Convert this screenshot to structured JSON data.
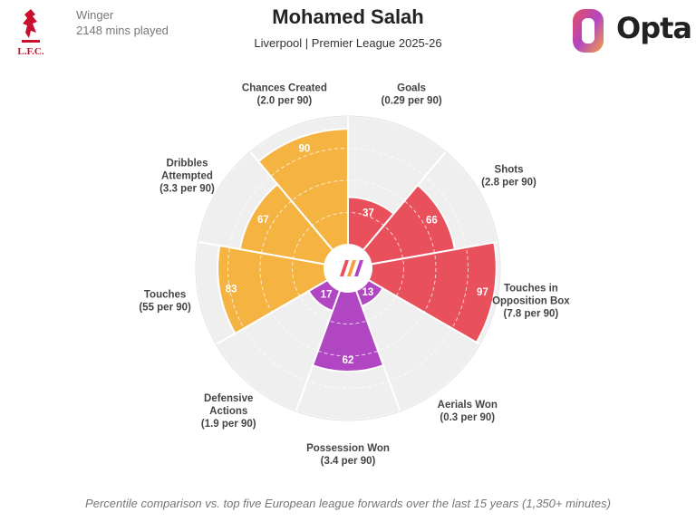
{
  "player": {
    "position": "Winger",
    "minutes": "2148 mins played",
    "name": "Mohamed Salah",
    "team_competition": "Liverpool | Premier League 2025-26"
  },
  "brand": {
    "club_text": "L.F.C.",
    "provider": "Opta"
  },
  "footnote": "Percentile comparison vs. top five European league forwards over the last 15 years (1,350+ minutes)",
  "colors": {
    "attacking": "#e8505b",
    "possession": "#f5b342",
    "defending": "#b146c2",
    "background_sector": "#efefef",
    "club": "#c8102e"
  },
  "chart_data": {
    "type": "polar-bar",
    "value_range": [
      0,
      100
    ],
    "metrics": [
      {
        "label": [
          "Goals"
        ],
        "per90": "(0.29 per 90)",
        "percentile": 37,
        "group": "attacking"
      },
      {
        "label": [
          "Shots"
        ],
        "per90": "(2.8 per 90)",
        "percentile": 66,
        "group": "attacking"
      },
      {
        "label": [
          "Touches in",
          "Opposition Box"
        ],
        "per90": "(7.8 per 90)",
        "percentile": 97,
        "group": "attacking"
      },
      {
        "label": [
          "Aerials Won"
        ],
        "per90": "(0.3 per 90)",
        "percentile": 13,
        "group": "defending"
      },
      {
        "label": [
          "Possession Won"
        ],
        "per90": "(3.4 per 90)",
        "percentile": 62,
        "group": "defending"
      },
      {
        "label": [
          "Defensive",
          "Actions"
        ],
        "per90": "(1.9 per 90)",
        "percentile": 17,
        "group": "defending"
      },
      {
        "label": [
          "Touches"
        ],
        "per90": "(55 per 90)",
        "percentile": 83,
        "group": "possession"
      },
      {
        "label": [
          "Dribbles",
          "Attempted"
        ],
        "per90": "(3.3 per 90)",
        "percentile": 67,
        "group": "possession"
      },
      {
        "label": [
          "Chances Created"
        ],
        "per90": "(2.0 per 90)",
        "percentile": 90,
        "group": "possession"
      }
    ]
  }
}
